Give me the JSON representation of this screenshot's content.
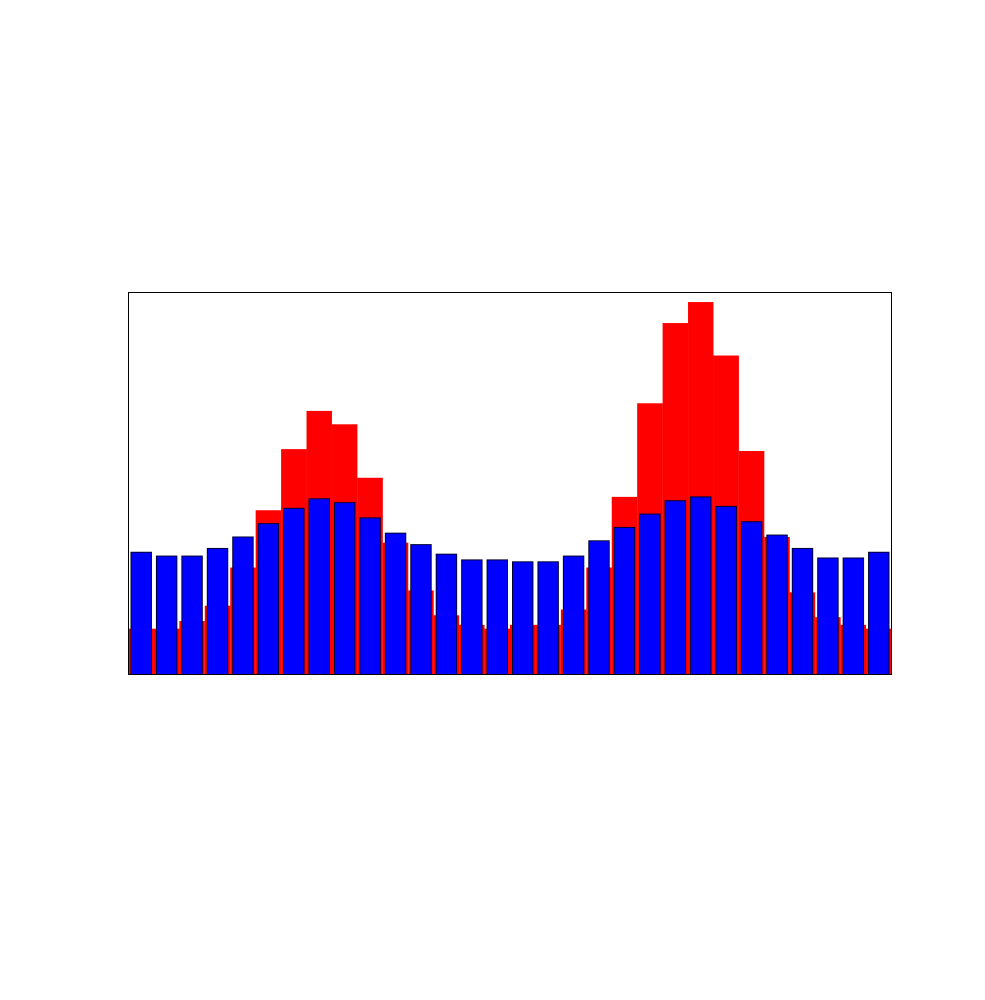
{
  "chart_data": {
    "type": "bar",
    "title": "",
    "xlabel": "",
    "ylabel": "",
    "axes_visible": false,
    "grid": false,
    "legend": "none",
    "ylim": [
      0,
      1
    ],
    "series": [
      {
        "color": "#ff0000",
        "style": "background histogram, no outline",
        "values": [
          0.12,
          0.12,
          0.14,
          0.18,
          0.28,
          0.43,
          0.59,
          0.69,
          0.655,
          0.515,
          0.345,
          0.22,
          0.155,
          0.13,
          0.12,
          0.13,
          0.13,
          0.17,
          0.28,
          0.465,
          0.71,
          0.92,
          0.975,
          0.835,
          0.585,
          0.36,
          0.215,
          0.15,
          0.13,
          0.12
        ]
      },
      {
        "color": "#0000ff",
        "style": "foreground bars, thin dark outline",
        "values": [
          0.32,
          0.31,
          0.31,
          0.33,
          0.36,
          0.395,
          0.435,
          0.46,
          0.45,
          0.41,
          0.37,
          0.34,
          0.315,
          0.3,
          0.3,
          0.295,
          0.295,
          0.31,
          0.35,
          0.385,
          0.42,
          0.455,
          0.465,
          0.44,
          0.4,
          0.365,
          0.33,
          0.305,
          0.305,
          0.32
        ]
      }
    ]
  }
}
